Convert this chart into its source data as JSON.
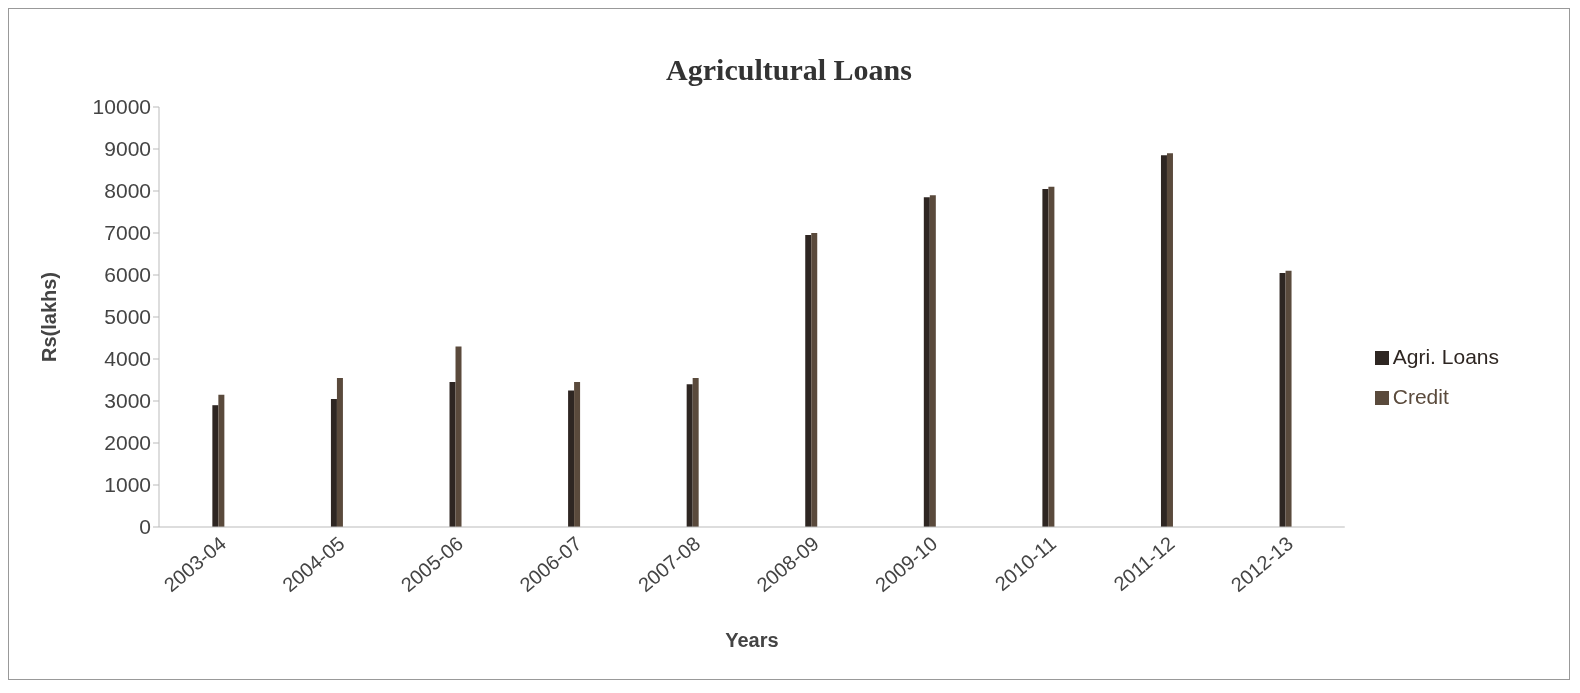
{
  "chart_data": {
    "type": "bar",
    "title": "Agricultural Loans",
    "xlabel": "Years",
    "ylabel": "Rs(lakhs)",
    "categories": [
      "2003-04",
      "2004-05",
      "2005-06",
      "2006-07",
      "2007-08",
      "2008-09",
      "2009-10",
      "2010-11",
      "2011-12",
      "2012-13"
    ],
    "series": [
      {
        "name": "Agri. Loans",
        "color": "#2e2622",
        "values": [
          2900,
          3050,
          3450,
          3250,
          3400,
          6950,
          7850,
          8050,
          8850,
          6050
        ]
      },
      {
        "name": "Credit",
        "color": "#5a4a3c",
        "values": [
          3150,
          3550,
          4300,
          3450,
          3550,
          7000,
          7900,
          8100,
          8900,
          6100
        ]
      }
    ],
    "ylim": [
      0,
      10000
    ],
    "yticks": [
      0,
      1000,
      2000,
      3000,
      4000,
      5000,
      6000,
      7000,
      8000,
      9000,
      10000
    ],
    "grid": false,
    "legend": "right"
  }
}
